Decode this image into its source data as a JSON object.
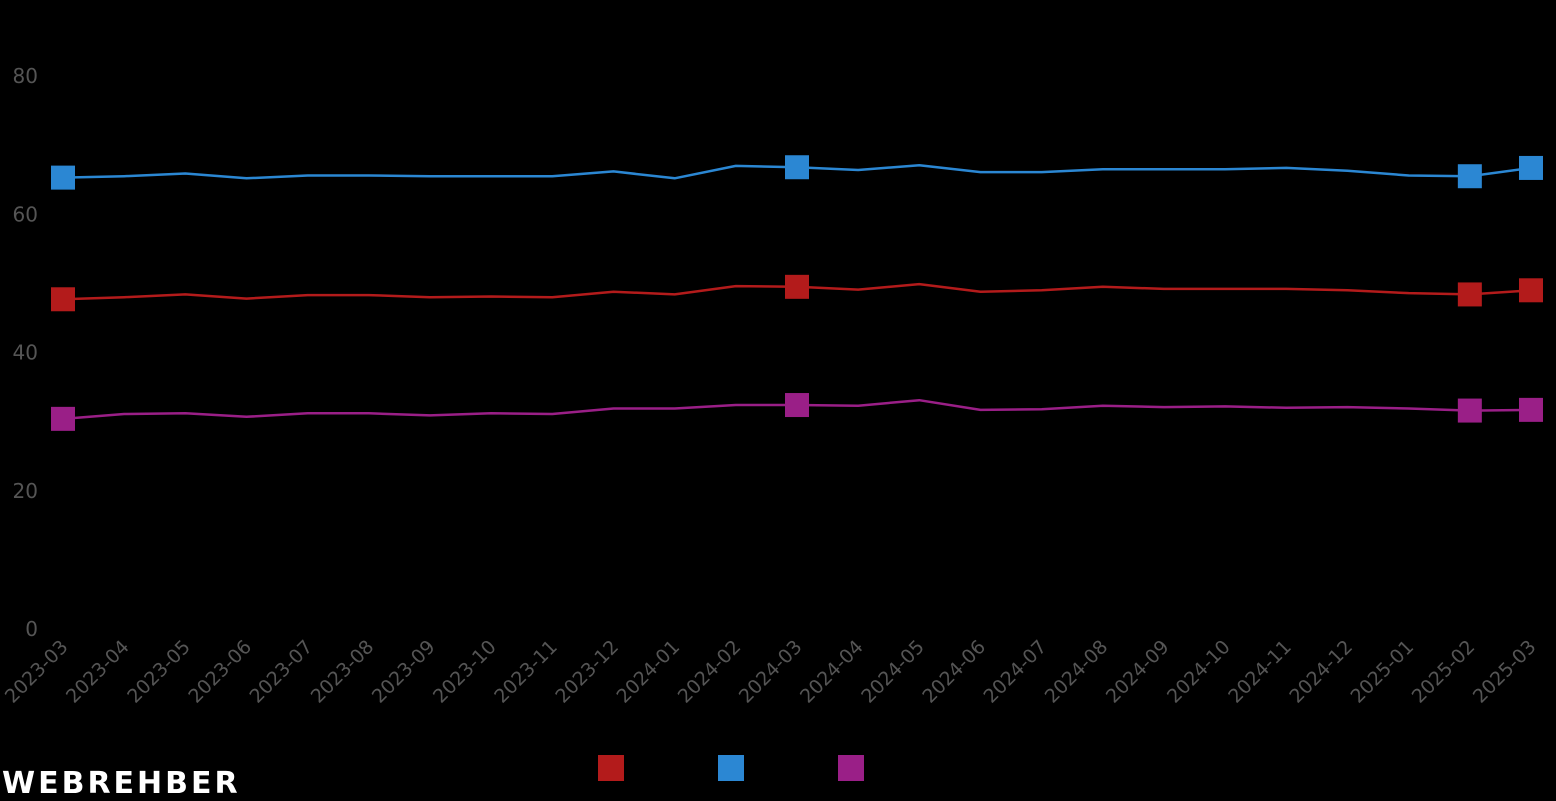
{
  "brand": {
    "logo_text": "WEBREHBER"
  },
  "chart_data": {
    "type": "line",
    "x": [
      "2023-03",
      "2023-04",
      "2023-05",
      "2023-06",
      "2023-07",
      "2023-08",
      "2023-09",
      "2023-10",
      "2023-11",
      "2023-12",
      "2024-01",
      "2024-02",
      "2024-03",
      "2024-04",
      "2024-05",
      "2024-06",
      "2024-07",
      "2024-08",
      "2024-09",
      "2024-10",
      "2024-11",
      "2024-12",
      "2025-01",
      "2025-02",
      "2025-03"
    ],
    "ylim": [
      0,
      85
    ],
    "yticks": [
      0,
      20,
      40,
      60,
      80
    ],
    "grid": false,
    "legend_position": "bottom",
    "series": [
      {
        "color": "#b31b1b",
        "values": [
          47.7,
          48.0,
          48.4,
          47.8,
          48.3,
          48.3,
          48.0,
          48.1,
          48.0,
          48.8,
          48.4,
          49.6,
          49.5,
          49.1,
          49.9,
          48.8,
          49.0,
          49.5,
          49.2,
          49.2,
          49.2,
          49.0,
          48.6,
          48.4,
          49.0
        ],
        "markers": [
          0,
          12,
          23,
          24
        ]
      },
      {
        "color": "#2b87d3",
        "values": [
          65.3,
          65.5,
          65.9,
          65.2,
          65.6,
          65.6,
          65.5,
          65.5,
          65.5,
          66.2,
          65.2,
          67.0,
          66.8,
          66.4,
          67.1,
          66.1,
          66.1,
          66.5,
          66.5,
          66.5,
          66.7,
          66.3,
          65.6,
          65.5,
          66.7
        ],
        "markers": [
          0,
          12,
          23,
          24
        ]
      },
      {
        "color": "#9a1f87",
        "values": [
          30.4,
          31.1,
          31.2,
          30.7,
          31.2,
          31.2,
          30.9,
          31.2,
          31.1,
          31.9,
          31.9,
          32.4,
          32.4,
          32.3,
          33.1,
          31.7,
          31.8,
          32.3,
          32.1,
          32.2,
          32.0,
          32.1,
          31.9,
          31.6,
          31.7
        ],
        "markers": [
          0,
          12,
          23,
          24
        ]
      }
    ]
  }
}
